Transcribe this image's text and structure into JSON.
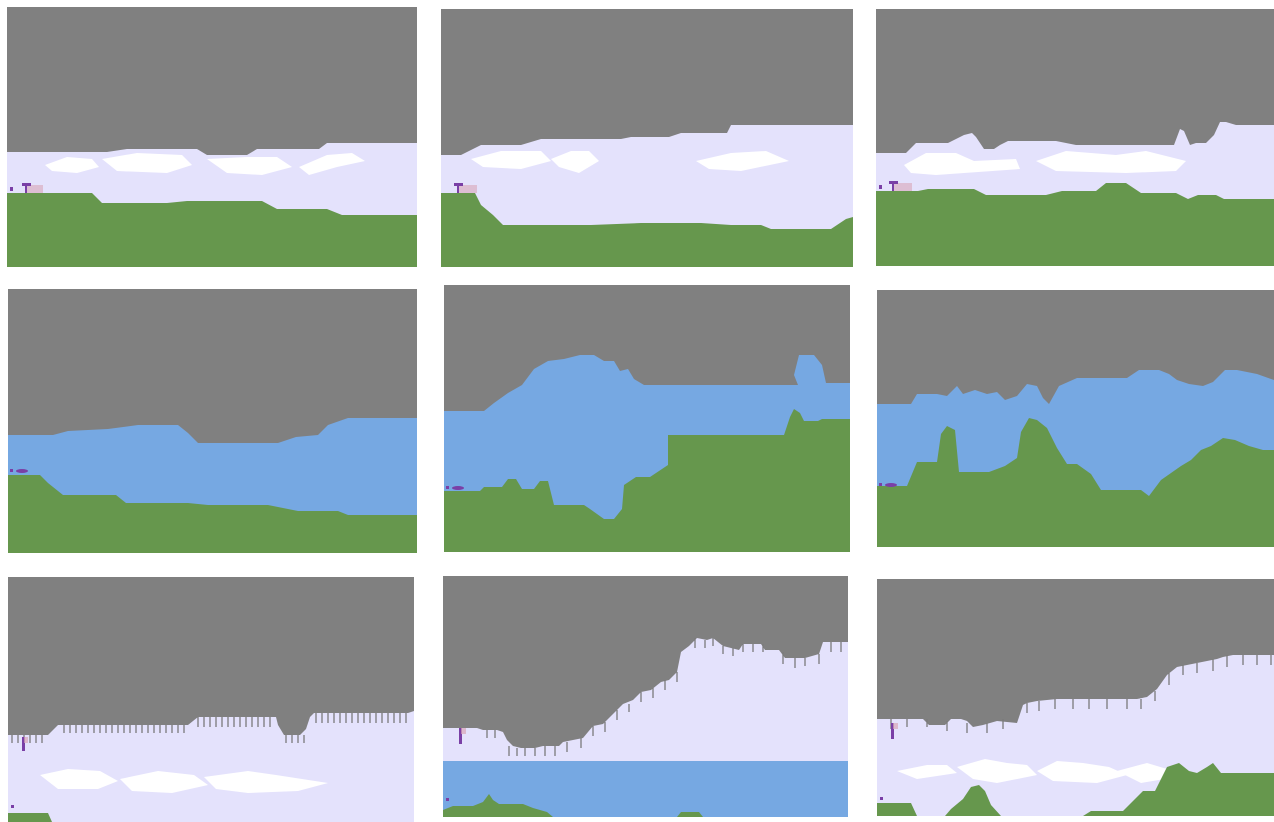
{
  "grid": {
    "rows": 3,
    "columns": 3,
    "panel_count": 9
  },
  "colors": {
    "rock": "#808080",
    "air": "#e4e2fc",
    "water": "#76a8e2",
    "ground": "#66974d",
    "cloud": "#ffffff",
    "spike": "#7a7a7a",
    "player": "#7a3fa6",
    "flag": "#d8a6b8"
  },
  "panels": [
    {
      "id": "1",
      "medium": "air",
      "features": [
        "clouds",
        "player",
        "flag"
      ]
    },
    {
      "id": "2",
      "medium": "air",
      "features": [
        "clouds",
        "player",
        "flag"
      ]
    },
    {
      "id": "3",
      "medium": "air",
      "features": [
        "clouds",
        "player",
        "flag"
      ]
    },
    {
      "id": "4",
      "medium": "water",
      "features": [
        "player"
      ]
    },
    {
      "id": "5",
      "medium": "water",
      "features": [
        "player"
      ]
    },
    {
      "id": "6",
      "medium": "water",
      "features": [
        "player"
      ]
    },
    {
      "id": "7",
      "medium": "air",
      "features": [
        "spikes",
        "clouds",
        "player"
      ]
    },
    {
      "id": "8",
      "medium": "air+water",
      "features": [
        "spikes",
        "player"
      ]
    },
    {
      "id": "9",
      "medium": "air",
      "features": [
        "spikes",
        "clouds",
        "player"
      ]
    }
  ]
}
